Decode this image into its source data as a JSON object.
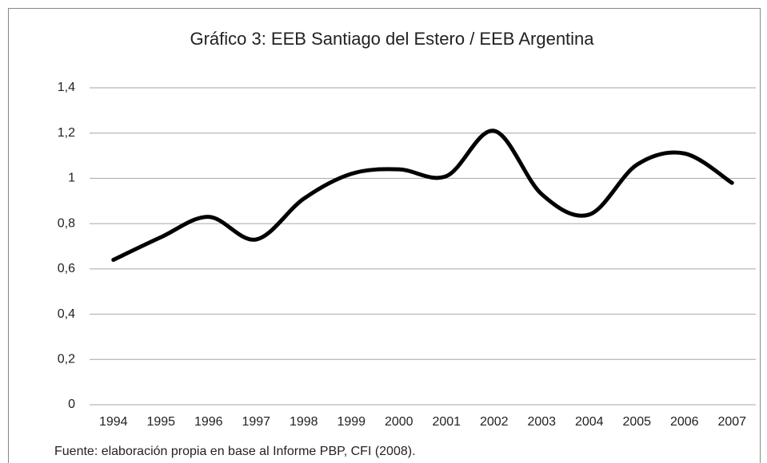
{
  "chart_data": {
    "type": "line",
    "title": "Gráfico 3: EEB Santiago del Estero / EEB Argentina",
    "categories": [
      "1994",
      "1995",
      "1996",
      "1997",
      "1998",
      "1999",
      "2000",
      "2001",
      "2002",
      "2003",
      "2004",
      "2005",
      "2006",
      "2007"
    ],
    "values": [
      0.64,
      0.74,
      0.83,
      0.73,
      0.91,
      1.02,
      1.04,
      1.01,
      1.21,
      0.93,
      0.84,
      1.06,
      1.11,
      0.98
    ],
    "color": "#000000",
    "smooth": true,
    "ylim": [
      0,
      1.4
    ],
    "yticks": [
      0,
      {
        "value": 0.2,
        "label": "0,2"
      },
      {
        "value": 0.4,
        "label": "0,4"
      },
      {
        "value": 0.6,
        "label": "0,6"
      },
      {
        "value": 0.8,
        "label": "0,8"
      },
      1,
      {
        "value": 1.2,
        "label": "1,2"
      },
      {
        "value": 1.4,
        "label": "1,4"
      }
    ],
    "grid": true,
    "source": "Fuente: elaboración propia en base al Informe PBP, CFI (2008)."
  }
}
